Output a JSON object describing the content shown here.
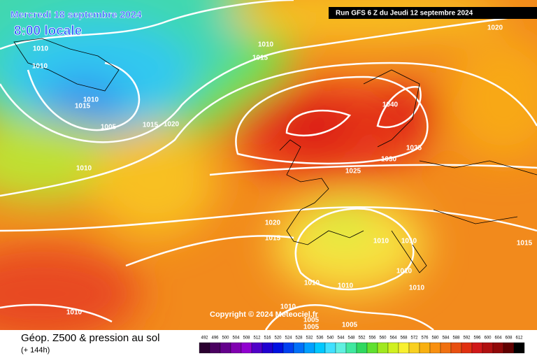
{
  "header": {
    "valid": "Mercredi 18 septembre 2024",
    "time": "8:00 locale",
    "run": "Run GFS 6 Z du Jeudi 12 septembre 2024"
  },
  "map": {
    "copyright": "Copyright © 2024 Meteociel.fr",
    "isobar_labels": [
      "1020",
      "1010",
      "1010",
      "1010",
      "1015",
      "1010",
      "1015",
      "1005",
      "1015",
      "1020",
      "1040",
      "1035",
      "1030",
      "1025",
      "1010",
      "1020",
      "1015",
      "1010",
      "1010",
      "1010",
      "1010",
      "1010",
      "1010",
      "1015",
      "1010",
      "1010",
      "1005",
      "1005",
      "1005"
    ]
  },
  "legend": {
    "title": "Géop. Z500 & pression au sol",
    "lead": "(+ 144h)",
    "scale": [
      492,
      496,
      500,
      504,
      508,
      512,
      516,
      520,
      524,
      528,
      532,
      536,
      540,
      544,
      548,
      552,
      556,
      560,
      564,
      568,
      572,
      576,
      580,
      584,
      588,
      592,
      596,
      600,
      604,
      608,
      612
    ],
    "colors": [
      "#2a0030",
      "#4a0060",
      "#64008c",
      "#8000b0",
      "#9000d0",
      "#5000c8",
      "#2000d0",
      "#0010e0",
      "#0040f0",
      "#0070f8",
      "#00a0ff",
      "#00c8ff",
      "#40e0ff",
      "#60f0e0",
      "#40e8a0",
      "#30d860",
      "#60e030",
      "#a0e820",
      "#d0f020",
      "#f8f030",
      "#f8d020",
      "#f8b010",
      "#f89010",
      "#f07010",
      "#e85010",
      "#e03010",
      "#d01818",
      "#b01010",
      "#900808",
      "#600000",
      "#000000"
    ]
  }
}
